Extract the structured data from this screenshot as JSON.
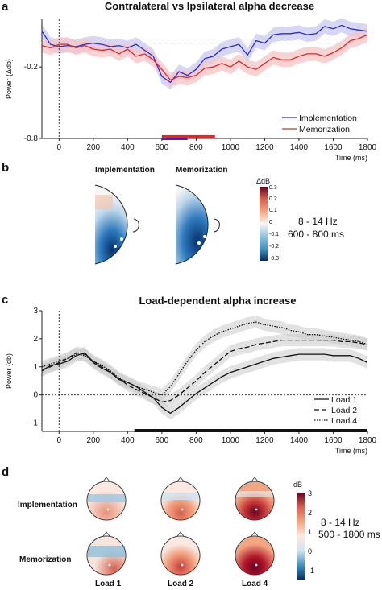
{
  "panel_a": {
    "letter": "a",
    "title": "Contralateral vs Ipsilateral alpha decrease",
    "ylabel": "Power (Δdb)",
    "xlabel": "Time (ms)",
    "yticks": [
      "-0.2",
      "-0.8"
    ],
    "xticks": [
      "0",
      "200",
      "400",
      "600",
      "800",
      "1000",
      "1200",
      "1400",
      "1600",
      "1800"
    ],
    "legend": [
      "Implementation",
      "Memorization"
    ]
  },
  "panel_b": {
    "letter": "b",
    "labels": [
      "Implementation",
      "Memorization"
    ],
    "colorbar_title": "ΔdB",
    "colorbar_ticks": [
      "0.3",
      "0.2",
      "0.1",
      "0",
      "-0.1",
      "-0.2",
      "-0.3"
    ],
    "annotation": [
      "8 - 14 Hz",
      "600 - 800 ms"
    ]
  },
  "panel_c": {
    "letter": "c",
    "title": "Load-dependent alpha increase",
    "ylabel": "Power (db)",
    "xlabel": "Time (ms)",
    "yticks": [
      "3",
      "2",
      "1",
      "0",
      "-1"
    ],
    "xticks": [
      "0",
      "200",
      "400",
      "600",
      "800",
      "1000",
      "1200",
      "1400",
      "1600",
      "1800"
    ],
    "legend": [
      "Load 1",
      "Load 2",
      "Load 4"
    ]
  },
  "panel_d": {
    "letter": "d",
    "row_labels": [
      "Implementation",
      "Memorization"
    ],
    "col_labels": [
      "Load 1",
      "Load 2",
      "Load 4"
    ],
    "colorbar_title": "dB",
    "colorbar_ticks": [
      "3",
      "2",
      "1",
      "0",
      "-1"
    ],
    "annotation": [
      "8 - 14 Hz",
      "500 - 1800 ms"
    ]
  },
  "colors": {
    "implementation": "#2b2bd0",
    "memorization": "#e02828",
    "band_impl": "#c9c9f2",
    "band_mem": "#f6c4c4",
    "gray_band": "#cfcfcf"
  },
  "chart_data": [
    {
      "type": "line",
      "title": "Contralateral vs Ipsilateral alpha decrease",
      "xlabel": "Time (ms)",
      "ylabel": "Power (Δdb)",
      "xlim": [
        -100,
        1800
      ],
      "ylim": [
        -0.8,
        0.2
      ],
      "x": [
        -100,
        -50,
        0,
        50,
        100,
        150,
        200,
        250,
        300,
        350,
        400,
        450,
        500,
        550,
        600,
        650,
        700,
        750,
        800,
        850,
        900,
        950,
        1000,
        1050,
        1100,
        1150,
        1200,
        1250,
        1300,
        1350,
        1400,
        1450,
        1500,
        1550,
        1600,
        1650,
        1700,
        1750,
        1800
      ],
      "series": [
        {
          "name": "Implementation",
          "values": [
            0.1,
            -0.01,
            -0.03,
            -0.02,
            -0.03,
            -0.01,
            0.0,
            -0.01,
            -0.03,
            -0.02,
            -0.04,
            -0.01,
            -0.06,
            -0.11,
            -0.28,
            -0.33,
            -0.24,
            -0.27,
            -0.22,
            -0.13,
            -0.11,
            -0.05,
            -0.03,
            -0.01,
            -0.1,
            0.02,
            0.0,
            0.07,
            0.08,
            0.08,
            0.09,
            0.07,
            0.08,
            0.14,
            0.12,
            0.15,
            0.12,
            0.11,
            0.1
          ]
        },
        {
          "name": "Memorization",
          "values": [
            -0.02,
            -0.04,
            -0.01,
            -0.01,
            -0.04,
            -0.02,
            -0.05,
            -0.06,
            -0.05,
            -0.09,
            -0.05,
            -0.11,
            -0.09,
            -0.14,
            -0.22,
            -0.31,
            -0.28,
            -0.29,
            -0.27,
            -0.21,
            -0.2,
            -0.17,
            -0.2,
            -0.15,
            -0.2,
            -0.22,
            -0.17,
            -0.12,
            -0.14,
            -0.14,
            -0.11,
            -0.09,
            -0.09,
            -0.11,
            -0.08,
            -0.04,
            0.02,
            0.04,
            0.07
          ]
        }
      ],
      "hline": 0.0,
      "vline": 0,
      "significance": [
        {
          "series": "Implementation",
          "from": 600,
          "to": 910
        },
        {
          "series": "Memorization",
          "from": 600,
          "to": 750
        }
      ],
      "legend_position": "bottom-right"
    },
    {
      "type": "line",
      "title": "Load-dependent alpha increase",
      "xlabel": "Time (ms)",
      "ylabel": "Power (db)",
      "xlim": [
        -100,
        1800
      ],
      "ylim": [
        -1.3,
        3.0
      ],
      "x": [
        -100,
        -50,
        0,
        50,
        100,
        150,
        200,
        250,
        300,
        350,
        400,
        450,
        500,
        550,
        600,
        650,
        700,
        750,
        800,
        850,
        900,
        950,
        1000,
        1050,
        1100,
        1150,
        1200,
        1250,
        1300,
        1350,
        1400,
        1450,
        1500,
        1550,
        1600,
        1650,
        1700,
        1750,
        1800
      ],
      "series": [
        {
          "name": "Load 1",
          "values": [
            0.85,
            1.05,
            1.1,
            1.2,
            1.4,
            1.5,
            1.15,
            0.95,
            0.8,
            0.55,
            0.45,
            0.3,
            0.1,
            -0.1,
            -0.45,
            -0.65,
            -0.45,
            -0.2,
            0.05,
            0.25,
            0.45,
            0.65,
            0.8,
            0.9,
            1.0,
            1.1,
            1.2,
            1.3,
            1.35,
            1.4,
            1.45,
            1.45,
            1.45,
            1.45,
            1.4,
            1.4,
            1.4,
            1.3,
            1.15
          ]
        },
        {
          "name": "Load 2",
          "values": [
            0.9,
            1.0,
            1.15,
            1.3,
            1.5,
            1.45,
            1.2,
            1.0,
            0.8,
            0.6,
            0.35,
            0.2,
            0.05,
            -0.1,
            -0.25,
            -0.2,
            0.0,
            0.25,
            0.5,
            0.8,
            1.05,
            1.3,
            1.55,
            1.65,
            1.7,
            1.8,
            1.85,
            1.9,
            1.95,
            1.95,
            1.95,
            1.95,
            1.95,
            1.95,
            1.95,
            1.9,
            1.9,
            1.85,
            1.8
          ]
        },
        {
          "name": "Load 4",
          "values": [
            1.0,
            1.1,
            1.2,
            1.3,
            1.45,
            1.4,
            1.2,
            1.05,
            0.85,
            0.6,
            0.45,
            0.3,
            0.2,
            0.1,
            0.0,
            0.3,
            0.75,
            1.2,
            1.6,
            1.9,
            2.1,
            2.25,
            2.35,
            2.45,
            2.55,
            2.6,
            2.5,
            2.45,
            2.4,
            2.3,
            2.25,
            2.15,
            2.15,
            2.1,
            2.05,
            2.0,
            1.95,
            1.9,
            1.8
          ]
        }
      ],
      "hline": 0,
      "vline": 0,
      "significance": [
        {
          "from": 440,
          "to": 1800
        }
      ],
      "legend_position": "bottom-right"
    }
  ]
}
